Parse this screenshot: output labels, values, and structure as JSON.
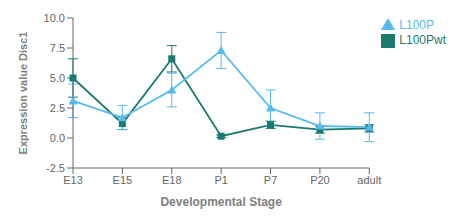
{
  "chart_data": {
    "type": "line",
    "xlabel": "Developmental Stage",
    "ylabel": "Expression value Disc1",
    "categories": [
      "E13",
      "E15",
      "E18",
      "P1",
      "P7",
      "P20",
      "adult"
    ],
    "series": [
      {
        "name": "L100Pwt",
        "color": "#1a7a6e",
        "marker": "square",
        "line_style": "solid",
        "values": [
          5.0,
          1.2,
          6.6,
          0.15,
          1.1,
          0.7,
          0.8
        ],
        "errors": [
          1.6,
          0.5,
          1.1,
          0.1,
          0.3,
          0.3,
          0.3
        ]
      },
      {
        "name": "L100P",
        "color": "#55bbee",
        "marker": "triangle",
        "line_style": "solid",
        "values": [
          3.1,
          1.7,
          4.0,
          7.3,
          2.5,
          1.0,
          0.9
        ],
        "errors": [
          1.4,
          1.0,
          1.4,
          1.5,
          1.5,
          1.1,
          1.2
        ]
      }
    ],
    "ylim": [
      -2.5,
      10.0
    ],
    "yticks": [
      -2.5,
      {
        "value": 0.0,
        "label": "0.0"
      },
      2.5,
      {
        "value": 5.0,
        "label": "5.0"
      },
      7.5,
      {
        "value": 10.0,
        "label": "10.0"
      }
    ],
    "grid": false,
    "legend": "right"
  }
}
